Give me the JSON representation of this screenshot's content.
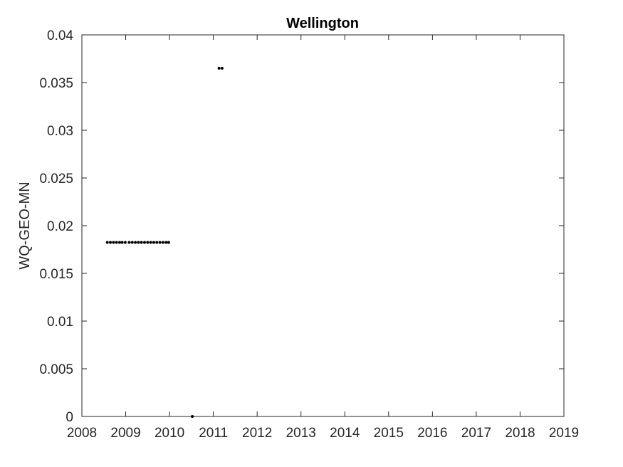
{
  "chart_data": {
    "type": "scatter",
    "title": "Wellington",
    "xlabel": "",
    "ylabel": "WQ-GEO-MN",
    "xlim": [
      2008,
      2019
    ],
    "ylim": [
      0,
      0.04
    ],
    "xticks": [
      "2008",
      "2009",
      "2010",
      "2011",
      "2012",
      "2013",
      "2014",
      "2015",
      "2016",
      "2017",
      "2018",
      "2019"
    ],
    "yticks": [
      "0",
      "0.005",
      "0.01",
      "0.015",
      "0.02",
      "0.025",
      "0.03",
      "0.035",
      "0.04"
    ],
    "grid": false,
    "marker_color": "#000000",
    "series": [
      {
        "points": [
          [
            2008.58,
            0.01825
          ],
          [
            2008.65,
            0.01825
          ],
          [
            2008.72,
            0.01825
          ],
          [
            2008.79,
            0.01825
          ],
          [
            2008.86,
            0.01825
          ],
          [
            2008.92,
            0.01825
          ],
          [
            2008.99,
            0.01825
          ],
          [
            2009.08,
            0.01825
          ],
          [
            2009.15,
            0.01825
          ],
          [
            2009.22,
            0.01825
          ],
          [
            2009.29,
            0.01825
          ],
          [
            2009.36,
            0.01825
          ],
          [
            2009.43,
            0.01825
          ],
          [
            2009.5,
            0.01825
          ],
          [
            2009.57,
            0.01825
          ],
          [
            2009.64,
            0.01825
          ],
          [
            2009.71,
            0.01825
          ],
          [
            2009.78,
            0.01825
          ],
          [
            2009.85,
            0.01825
          ],
          [
            2009.92,
            0.01825
          ],
          [
            2009.98,
            0.01825
          ],
          [
            2010.52,
            0.0
          ],
          [
            2011.13,
            0.0365
          ],
          [
            2011.2,
            0.0365
          ]
        ]
      }
    ]
  }
}
